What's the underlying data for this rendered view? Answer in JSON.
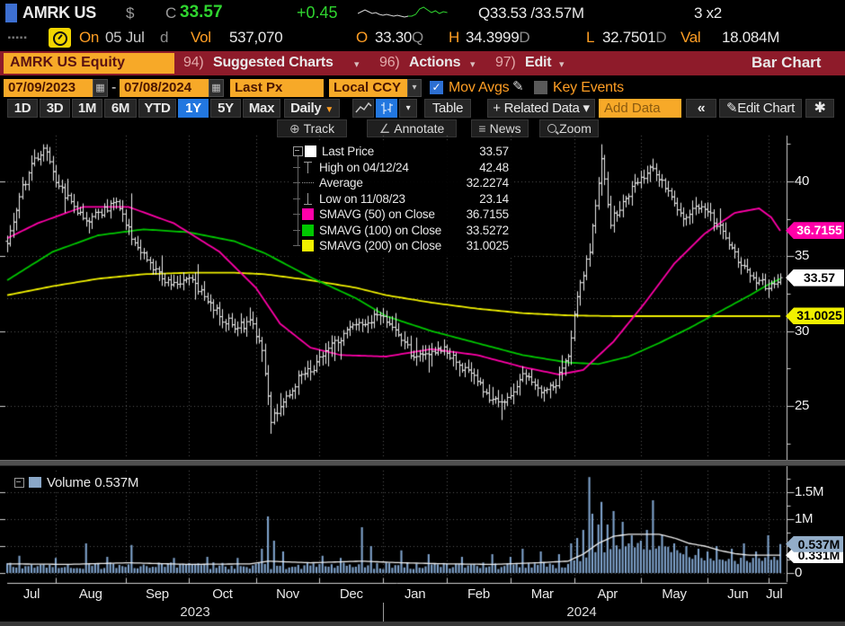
{
  "colors": {
    "amber": "#f7a928",
    "amber_text": "#ff9e24",
    "maroon": "#8e1b2a",
    "select_blue": "#2277e0",
    "green": "#2fd42f",
    "magenta": "#ff00a8",
    "sma100_green": "#00c800",
    "sma200_yellow": "#f0f000",
    "volume_bar": "#7fa3cc",
    "volume_badge": "#93adc8",
    "bar_white": "#ececec"
  },
  "header": {
    "ticker": "AMRK US",
    "currency_symbol": "$",
    "last_label": "C",
    "last_price": "33.57",
    "change": "+0.45",
    "quote": "Q33.53 /33.57M",
    "size": "3 x2",
    "sparkline_white": [
      9,
      7,
      5,
      7,
      9,
      8,
      10,
      11,
      10,
      11,
      12,
      11,
      12,
      13,
      12,
      12
    ],
    "sparkline_green": [
      12,
      10,
      4,
      2,
      5,
      8,
      6,
      9,
      7,
      8
    ]
  },
  "stats_row": {
    "dots": ".....",
    "on_label": "On",
    "on_date": "05 Jul",
    "on_suffix": "d",
    "vol_label": "Vol",
    "vol_value": "537,070",
    "open_label": "O",
    "open_value": "33.30",
    "open_cond": "Q",
    "high_label": "H",
    "high_value": "34.3999",
    "high_cond": "D",
    "low_label": "L",
    "low_value": "32.7501",
    "low_cond": "D",
    "val_label": "Val",
    "val_value": "18.084M"
  },
  "menu_bar": {
    "security": "AMRK US Equity",
    "items": [
      {
        "num": "94)",
        "label": "Suggested Charts",
        "caret": "▾"
      },
      {
        "num": "96)",
        "label": "Actions",
        "caret": "▾"
      },
      {
        "num": "97)",
        "label": "Edit",
        "caret": "▾"
      }
    ],
    "right_label": "Bar Chart"
  },
  "controls": {
    "date_from": "07/09/2023",
    "date_to": "07/08/2024",
    "date_sep": "-",
    "calendar_glyph": "▦",
    "price_field": "Last Px",
    "currency": "Local CCY",
    "currency_caret": "▾",
    "mov_avgs": {
      "label": "Mov Avgs",
      "checked": true,
      "check_glyph": "✓"
    },
    "key_events": {
      "label": "Key Events",
      "checked": false
    },
    "pencil_glyph": "✎"
  },
  "range_bar": {
    "ranges": [
      "1D",
      "3D",
      "1M",
      "6M",
      "YTD",
      "1Y",
      "5Y",
      "Max"
    ],
    "selected": "1Y",
    "period": "Daily",
    "period_caret": "▼",
    "chart_style_caret": "▾",
    "table_label": "Table",
    "related_data_label": "+ Related Data ▾",
    "add_data_label": "Add Data",
    "collapse_label": "«",
    "edit_chart_label": "Edit Chart",
    "gear_glyph": "✱"
  },
  "chart_toolbar": {
    "track": "Track",
    "annotate": "Annotate",
    "news": "News",
    "zoom": "Zoom",
    "track_icon": "⊕",
    "annotate_icon": "∠",
    "news_icon": "≡"
  },
  "legend": {
    "rows": [
      {
        "marker": "swatch",
        "color": "#ffffff",
        "label": "Last Price",
        "value": "33.57"
      },
      {
        "marker": "high",
        "color": "#9a9a9a",
        "label": "High on 04/12/24",
        "value": "42.48"
      },
      {
        "marker": "avg",
        "color": "#9a9a9a",
        "label": "Average",
        "value": "32.2274"
      },
      {
        "marker": "low",
        "color": "#9a9a9a",
        "label": "Low on 11/08/23",
        "value": "23.14"
      },
      {
        "marker": "swatch",
        "color": "#ff00a8",
        "label": "SMAVG (50)  on Close",
        "value": "36.7155"
      },
      {
        "marker": "swatch",
        "color": "#00c800",
        "label": "SMAVG (100)  on Close",
        "value": "33.5272"
      },
      {
        "marker": "swatch",
        "color": "#f0f000",
        "label": "SMAVG (200)  on Close",
        "value": "31.0025"
      }
    ]
  },
  "price_axis": {
    "ticks": [
      {
        "label": "40",
        "price": 40
      },
      {
        "label": "35",
        "price": 35
      },
      {
        "label": "30",
        "price": 30
      },
      {
        "label": "25",
        "price": 25
      }
    ],
    "badges": [
      {
        "label": "36.7155",
        "price": 36.7155,
        "bg": "#ff00a8",
        "fg": "#ffffff"
      },
      {
        "label": "33.57",
        "price": 33.57,
        "bg": "#ffffff",
        "fg": "#000000"
      },
      {
        "label": "31.0025",
        "price": 31.0025,
        "bg": "#f0f000",
        "fg": "#000000"
      }
    ]
  },
  "volume_panel": {
    "label": "Volume",
    "value": "0.537M",
    "ticks": [
      {
        "label": "1.5M",
        "v": 1.5
      },
      {
        "label": "1M",
        "v": 1.0
      },
      {
        "label": "0",
        "v": 0
      }
    ],
    "badges": [
      {
        "label": "0.537M",
        "v": 0.537,
        "bg": "#93adc8",
        "fg": "#000000",
        "z": 3
      },
      {
        "label": "0.331M",
        "v": 0.331,
        "bg": "#ffffff",
        "fg": "#000000",
        "z": 2
      }
    ]
  },
  "x_axis": {
    "months": [
      "Jul",
      "Aug",
      "Sep",
      "Oct",
      "Nov",
      "Dec",
      "Jan",
      "Feb",
      "Mar",
      "Apr",
      "May",
      "Jun",
      "Jul"
    ],
    "years": [
      "2023",
      "2024"
    ]
  },
  "chart_data": {
    "type": "ohlc_bar",
    "symbol": "AMRK US Equity",
    "range": {
      "from": "07/09/2023",
      "to": "07/08/2024",
      "period": "Daily"
    },
    "stats": {
      "last": 33.57,
      "high": 42.48,
      "high_date": "04/12/24",
      "average": 32.2274,
      "low": 23.14,
      "low_date": "11/08/23",
      "sma50": 36.7155,
      "sma100": 33.5272,
      "sma200": 31.0025,
      "last_volume_m": 0.537,
      "avg_volume_m": 0.331
    },
    "days": 256,
    "month_boundaries": [
      16,
      39,
      60,
      82,
      103,
      124,
      145,
      166,
      187,
      209,
      231,
      251
    ],
    "year_divider_day": 124,
    "close_anchors": [
      [
        0,
        35.8
      ],
      [
        4,
        39.0
      ],
      [
        9,
        41.6
      ],
      [
        13,
        42.2
      ],
      [
        16,
        40.0
      ],
      [
        21,
        38.6
      ],
      [
        26,
        37.3
      ],
      [
        31,
        38.0
      ],
      [
        36,
        38.7
      ],
      [
        41,
        36.4
      ],
      [
        46,
        34.8
      ],
      [
        51,
        33.6
      ],
      [
        56,
        33.0
      ],
      [
        61,
        33.4
      ],
      [
        66,
        32.0
      ],
      [
        71,
        30.8
      ],
      [
        76,
        30.3
      ],
      [
        81,
        30.6
      ],
      [
        84,
        28.5
      ],
      [
        87,
        23.9
      ],
      [
        91,
        25.3
      ],
      [
        96,
        26.8
      ],
      [
        102,
        27.8
      ],
      [
        108,
        29.3
      ],
      [
        113,
        30.1
      ],
      [
        118,
        30.6
      ],
      [
        123,
        31.2
      ],
      [
        129,
        30.0
      ],
      [
        134,
        28.2
      ],
      [
        139,
        28.6
      ],
      [
        144,
        28.9
      ],
      [
        149,
        27.8
      ],
      [
        154,
        26.9
      ],
      [
        159,
        25.6
      ],
      [
        164,
        25.0
      ],
      [
        171,
        27.2
      ],
      [
        176,
        26.1
      ],
      [
        181,
        26.6
      ],
      [
        185,
        28.3
      ],
      [
        187,
        31.3
      ],
      [
        192,
        35.5
      ],
      [
        196,
        41.5
      ],
      [
        199,
        37.3
      ],
      [
        203,
        38.6
      ],
      [
        208,
        40.0
      ],
      [
        213,
        41.0
      ],
      [
        218,
        39.2
      ],
      [
        223,
        37.6
      ],
      [
        229,
        38.5
      ],
      [
        234,
        37.2
      ],
      [
        239,
        35.4
      ],
      [
        243,
        34.2
      ],
      [
        248,
        33.3
      ],
      [
        251,
        33.0
      ],
      [
        254,
        33.1
      ],
      [
        255,
        33.57
      ]
    ],
    "overrides": [
      {
        "i": 41,
        "h": 39.2
      },
      {
        "i": 87,
        "l": 23.14,
        "c": 23.9
      },
      {
        "i": 196,
        "h": 42.48
      },
      {
        "i": 255,
        "c": 33.57
      }
    ],
    "sma50_anchors": [
      [
        0,
        36.2
      ],
      [
        10,
        37.2
      ],
      [
        25,
        38.3
      ],
      [
        40,
        38.3
      ],
      [
        55,
        37.2
      ],
      [
        70,
        35.3
      ],
      [
        82,
        32.9
      ],
      [
        90,
        30.5
      ],
      [
        100,
        28.9
      ],
      [
        110,
        28.4
      ],
      [
        125,
        28.3
      ],
      [
        140,
        28.8
      ],
      [
        155,
        28.4
      ],
      [
        170,
        27.6
      ],
      [
        182,
        27.1
      ],
      [
        190,
        27.4
      ],
      [
        200,
        29.3
      ],
      [
        210,
        31.8
      ],
      [
        220,
        34.5
      ],
      [
        230,
        36.5
      ],
      [
        240,
        37.9
      ],
      [
        248,
        38.2
      ],
      [
        252,
        37.6
      ],
      [
        255,
        36.7
      ]
    ],
    "sma100_anchors": [
      [
        0,
        33.4
      ],
      [
        15,
        35.3
      ],
      [
        30,
        36.4
      ],
      [
        45,
        36.8
      ],
      [
        60,
        36.6
      ],
      [
        75,
        36.0
      ],
      [
        85,
        35.2
      ],
      [
        100,
        33.6
      ],
      [
        115,
        32.2
      ],
      [
        125,
        31.0
      ],
      [
        140,
        30.0
      ],
      [
        155,
        29.2
      ],
      [
        170,
        28.4
      ],
      [
        185,
        27.9
      ],
      [
        195,
        27.8
      ],
      [
        205,
        28.3
      ],
      [
        215,
        29.2
      ],
      [
        225,
        30.2
      ],
      [
        235,
        31.3
      ],
      [
        245,
        32.4
      ],
      [
        250,
        33.0
      ],
      [
        255,
        33.5
      ]
    ],
    "sma200_anchors": [
      [
        0,
        32.4
      ],
      [
        15,
        33.0
      ],
      [
        30,
        33.5
      ],
      [
        45,
        33.8
      ],
      [
        60,
        33.9
      ],
      [
        75,
        33.9
      ],
      [
        85,
        33.8
      ],
      [
        100,
        33.4
      ],
      [
        115,
        32.9
      ],
      [
        125,
        32.4
      ],
      [
        140,
        31.9
      ],
      [
        155,
        31.5
      ],
      [
        170,
        31.2
      ],
      [
        185,
        31.05
      ],
      [
        200,
        31.0
      ],
      [
        255,
        31.0
      ]
    ],
    "volume_spikes": [
      [
        4,
        0.32
      ],
      [
        16,
        0.28
      ],
      [
        26,
        0.55
      ],
      [
        33,
        0.3
      ],
      [
        41,
        0.52
      ],
      [
        55,
        0.28
      ],
      [
        66,
        0.3
      ],
      [
        76,
        0.28
      ],
      [
        84,
        0.45
      ],
      [
        86,
        1.05
      ],
      [
        88,
        0.6
      ],
      [
        91,
        0.4
      ],
      [
        104,
        0.32
      ],
      [
        110,
        0.28
      ],
      [
        117,
        0.85
      ],
      [
        120,
        0.5
      ],
      [
        130,
        0.42
      ],
      [
        139,
        0.35
      ],
      [
        150,
        0.3
      ],
      [
        160,
        0.35
      ],
      [
        166,
        0.3
      ],
      [
        170,
        0.45
      ],
      [
        176,
        0.4
      ],
      [
        182,
        0.35
      ],
      [
        186,
        0.55
      ],
      [
        188,
        0.65
      ],
      [
        190,
        0.8
      ],
      [
        192,
        1.78
      ],
      [
        193,
        1.1
      ],
      [
        195,
        0.9
      ],
      [
        196,
        1.32
      ],
      [
        198,
        0.9
      ],
      [
        200,
        1.15
      ],
      [
        203,
        0.95
      ],
      [
        206,
        0.7
      ],
      [
        209,
        0.6
      ],
      [
        211,
        0.8
      ],
      [
        213,
        1.35
      ],
      [
        216,
        0.7
      ],
      [
        220,
        0.55
      ],
      [
        224,
        0.5
      ],
      [
        228,
        0.45
      ],
      [
        231,
        0.4
      ],
      [
        234,
        0.5
      ],
      [
        239,
        0.45
      ],
      [
        243,
        0.55
      ],
      [
        247,
        0.4
      ],
      [
        251,
        0.7
      ],
      [
        253,
        0.3
      ],
      [
        255,
        0.537
      ]
    ],
    "volume_ma_anchors": [
      [
        0,
        0.17
      ],
      [
        20,
        0.16
      ],
      [
        40,
        0.19
      ],
      [
        60,
        0.16
      ],
      [
        80,
        0.17
      ],
      [
        86,
        0.22
      ],
      [
        100,
        0.19
      ],
      [
        117,
        0.22
      ],
      [
        130,
        0.19
      ],
      [
        145,
        0.17
      ],
      [
        160,
        0.16
      ],
      [
        175,
        0.19
      ],
      [
        185,
        0.22
      ],
      [
        190,
        0.35
      ],
      [
        195,
        0.55
      ],
      [
        200,
        0.68
      ],
      [
        205,
        0.72
      ],
      [
        215,
        0.72
      ],
      [
        220,
        0.65
      ],
      [
        225,
        0.55
      ],
      [
        230,
        0.5
      ],
      [
        235,
        0.42
      ],
      [
        240,
        0.36
      ],
      [
        245,
        0.33
      ],
      [
        255,
        0.33
      ]
    ]
  }
}
